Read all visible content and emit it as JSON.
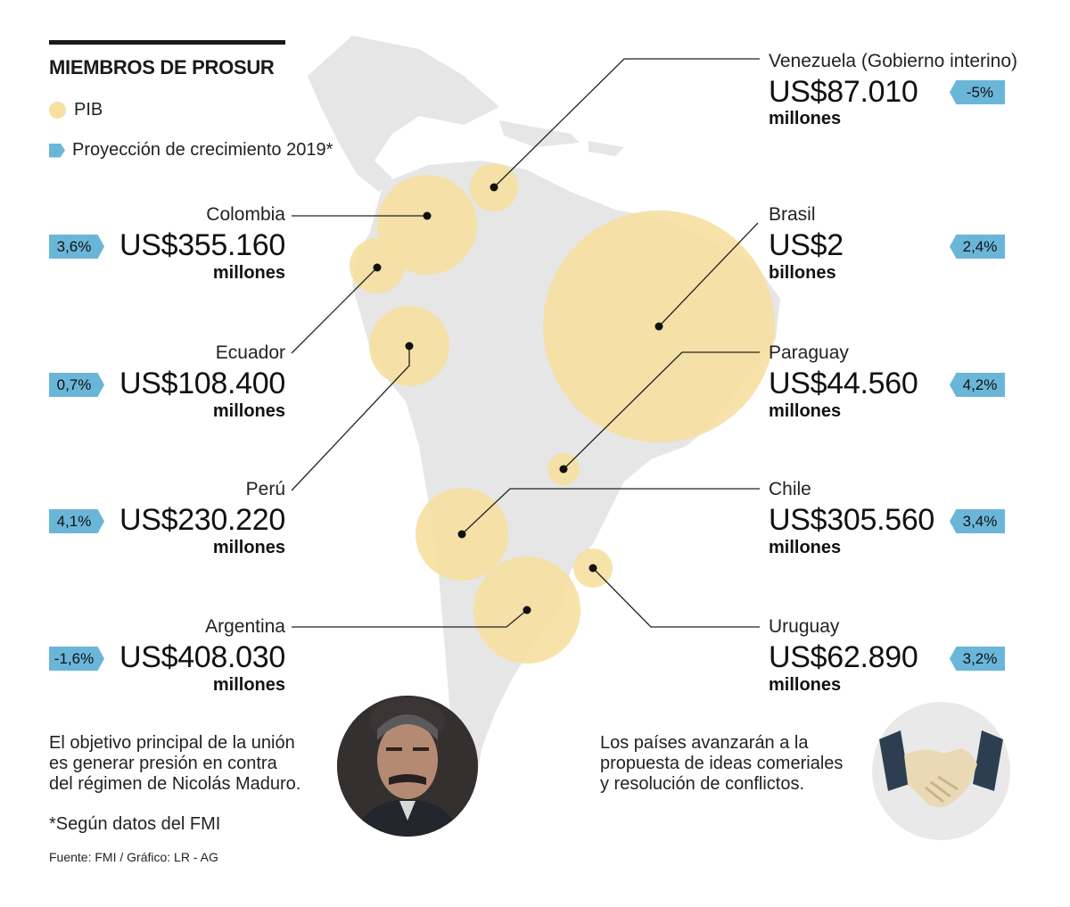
{
  "title": "MIEMBROS DE PROSUR",
  "legend": {
    "gdp": "PIB",
    "growth": "Proyección de crecimiento 2019*"
  },
  "colors": {
    "bubble": "#f6e0a2",
    "badge": "#6ab6d9",
    "land": "#e6e6e6"
  },
  "countries": {
    "venezuela": {
      "name": "Venezuela (Gobierno interino)",
      "value": "US$87.010",
      "unit": "millones",
      "growth": "-5%"
    },
    "colombia": {
      "name": "Colombia",
      "value": "US$355.160",
      "unit": "millones",
      "growth": "3,6%"
    },
    "brasil": {
      "name": "Brasil",
      "value": "US$2",
      "unit": "billones",
      "growth": "2,4%"
    },
    "ecuador": {
      "name": "Ecuador",
      "value": "US$108.400",
      "unit": "millones",
      "growth": "0,7%"
    },
    "paraguay": {
      "name": "Paraguay",
      "value": "US$44.560",
      "unit": "millones",
      "growth": "4,2%"
    },
    "peru": {
      "name": "Perú",
      "value": "US$230.220",
      "unit": "millones",
      "growth": "4,1%"
    },
    "chile": {
      "name": "Chile",
      "value": "US$305.560",
      "unit": "millones",
      "growth": "3,4%"
    },
    "argentina": {
      "name": "Argentina",
      "value": "US$408.030",
      "unit": "millones",
      "growth": "-1,6%"
    },
    "uruguay": {
      "name": "Uruguay",
      "value": "US$62.890",
      "unit": "millones",
      "growth": "3,2%"
    }
  },
  "notes": {
    "left": [
      "El objetivo principal de la unión",
      "es generar presión en contra",
      "del régimen de Nicolás Maduro."
    ],
    "imf": "*Según datos del FMI",
    "right": [
      "Los países avanzarán a la",
      "propuesta de ideas comeriales",
      "y resolución de conflictos."
    ]
  },
  "source": "Fuente: FMI / Gráfico: LR - AG",
  "icons": {
    "photo": "portrait-photo-icon",
    "handshake": "handshake-icon"
  }
}
